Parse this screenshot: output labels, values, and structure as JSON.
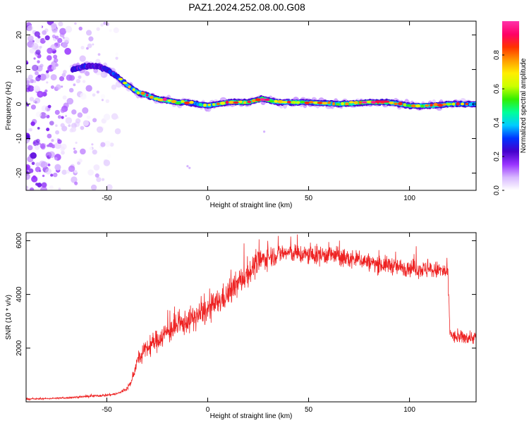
{
  "title": "PAZ1.2024.252.08.00.G08",
  "chart_data": [
    {
      "type": "heatmap",
      "xlabel": "Height of straight line (km)",
      "ylabel": "Frequency (Hz)",
      "xlim": [
        -90,
        133
      ],
      "ylim": [
        -25,
        24
      ],
      "xticks": [
        -50,
        0,
        50,
        100
      ],
      "yticks": [
        -20,
        -10,
        0,
        10,
        20
      ],
      "colorbar": {
        "label": "Normalized spectral amplitude",
        "range": [
          0,
          1
        ],
        "ticks": [
          0.0,
          0.2,
          0.4,
          0.6,
          0.8
        ],
        "colors": [
          "#ffffff",
          "#d8b8ff",
          "#9933ff",
          "#4400cc",
          "#0033ff",
          "#00ccff",
          "#00ff99",
          "#33ee00",
          "#ccff00",
          "#ffee00",
          "#ff9900",
          "#ff3300",
          "#ff0066",
          "#ff33aa"
        ]
      },
      "ridge": {
        "height_km": [
          -67,
          -60,
          -55,
          -50,
          -45,
          -40,
          -35,
          -30,
          -25,
          -20,
          -15,
          -10,
          -5,
          0,
          5,
          10,
          20,
          27,
          35,
          50,
          65,
          80,
          90,
          100,
          110,
          120,
          133
        ],
        "frequency_hz": [
          10,
          11,
          11,
          10,
          8,
          5.5,
          3.5,
          2.5,
          1.5,
          1.0,
          0.5,
          0.5,
          0.0,
          -0.5,
          0.0,
          0.5,
          0.5,
          1.5,
          0.5,
          0.5,
          0.0,
          0.5,
          0.5,
          -0.5,
          -0.5,
          0.0,
          0.0
        ],
        "amplitude": [
          0.3,
          0.35,
          0.35,
          0.3,
          0.45,
          0.55,
          0.6,
          0.7,
          0.65,
          0.7,
          0.6,
          0.55,
          0.5,
          0.6,
          0.6,
          0.65,
          0.75,
          0.7,
          0.65,
          0.6,
          0.65,
          0.75,
          0.6,
          0.6,
          0.65,
          0.55,
          0.5
        ]
      },
      "noise_region_km": [
        -90,
        -42
      ]
    },
    {
      "type": "line",
      "xlabel": "Height of straight line (km)",
      "ylabel": "SNR (10 * v/v)",
      "xlim": [
        -90,
        133
      ],
      "ylim": [
        0,
        6300
      ],
      "xticks": [
        -50,
        0,
        50,
        100
      ],
      "yticks": [
        2000,
        4000,
        6000
      ],
      "series": [
        {
          "color": "#ee2222",
          "x": [
            -90,
            -80,
            -70,
            -60,
            -50,
            -45,
            -42,
            -40,
            -38,
            -35,
            -30,
            -25,
            -20,
            -15,
            -10,
            -5,
            0,
            5,
            10,
            15,
            20,
            25,
            30,
            35,
            40,
            45,
            50,
            55,
            60,
            65,
            70,
            75,
            80,
            85,
            90,
            95,
            100,
            105,
            110,
            115,
            119,
            120,
            122,
            125,
            130,
            133
          ],
          "y": [
            100,
            120,
            150,
            200,
            250,
            300,
            400,
            500,
            700,
            1500,
            2000,
            2300,
            2600,
            2800,
            3000,
            3200,
            3400,
            3700,
            4000,
            4400,
            4800,
            5200,
            5400,
            5500,
            5550,
            5500,
            5450,
            5450,
            5500,
            5400,
            5300,
            5300,
            5200,
            5100,
            5100,
            5000,
            5000,
            4950,
            4900,
            4900,
            4800,
            2600,
            2400,
            2400,
            2400,
            2400
          ],
          "spread": [
            30,
            30,
            40,
            50,
            60,
            60,
            80,
            100,
            150,
            300,
            450,
            500,
            550,
            550,
            550,
            600,
            600,
            600,
            600,
            600,
            600,
            550,
            500,
            450,
            400,
            450,
            450,
            450,
            450,
            450,
            450,
            400,
            400,
            400,
            400,
            400,
            400,
            400,
            400,
            400,
            400,
            300,
            300,
            300,
            300,
            300
          ]
        }
      ]
    }
  ]
}
